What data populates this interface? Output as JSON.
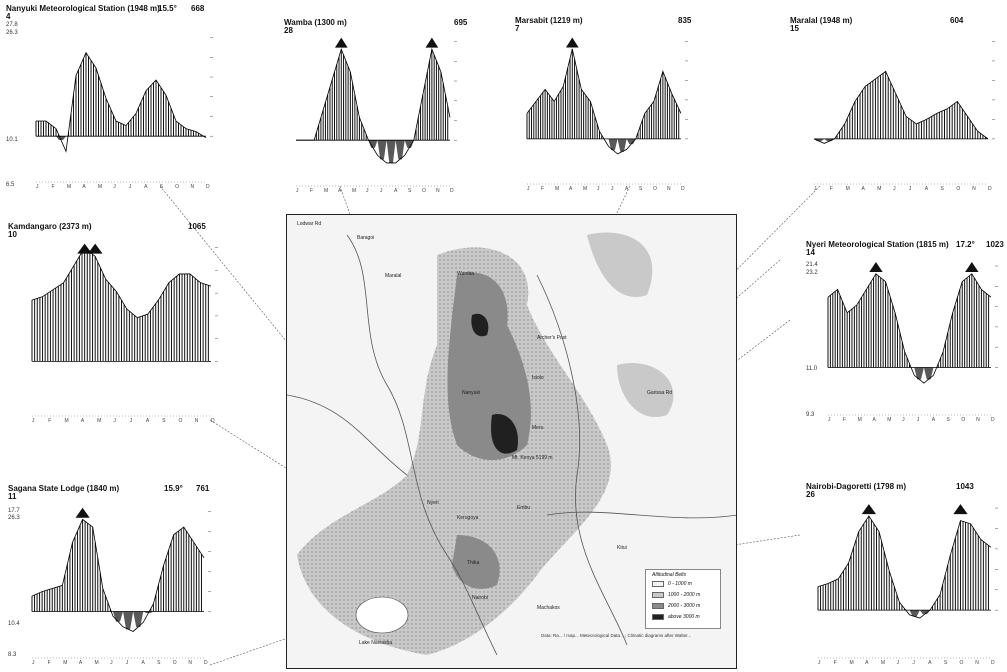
{
  "panels": [
    {
      "id": "nanyuki",
      "title": "Nanyuki Meteorological Station (1948 m)",
      "temp": "15.5°",
      "rain": "668",
      "years": "4",
      "ytop1": "27.8",
      "ytop2": "26.3",
      "ybot1": "6.5",
      "ymid": "10.1",
      "climate": [
        0.45,
        0.45,
        0.44,
        0.5,
        0.76,
        0.92,
        0.84,
        0.68,
        0.58,
        0.56,
        0.62,
        0.8,
        0.84,
        0.74,
        0.56,
        0.48,
        0.45,
        0.42
      ],
      "rain_curve": [
        0.47,
        0.44,
        0.32,
        0.55,
        0.95,
        0.88,
        0.72,
        0.62,
        0.58,
        0.62,
        0.82,
        0.85,
        0.72,
        0.6,
        0.52,
        0.47,
        0.42,
        0.44
      ]
    },
    {
      "id": "wamba",
      "title": "Wamba (1300 m)",
      "temp": "",
      "rain": "695",
      "years": "28",
      "ytop1": "",
      "ytop2": "",
      "ybot1": "",
      "ymid": "",
      "climate": [],
      "rain_curve": []
    },
    {
      "id": "marsabit",
      "title": "Marsabit (1219 m)",
      "temp": "",
      "rain": "835",
      "years": "7",
      "ytop1": "",
      "ytop2": "",
      "ybot1": "",
      "ymid": "",
      "climate": [],
      "rain_curve": []
    },
    {
      "id": "maralal",
      "title": "Maralal (1948 m)",
      "temp": "",
      "rain": "604",
      "years": "15",
      "ytop1": "",
      "ytop2": "",
      "ybot1": "",
      "ymid": "",
      "climate": [],
      "rain_curve": []
    },
    {
      "id": "kamdangaro",
      "title": "Kamdangaro (2373 m)",
      "temp": "",
      "rain": "1065",
      "years": "10",
      "ytop1": "",
      "ytop2": "",
      "ybot1": "",
      "ymid": "",
      "climate": [],
      "rain_curve": []
    },
    {
      "id": "nyeri",
      "title": "Nyeri Meteorological Station (1815 m)",
      "temp": "17.2°",
      "rain": "1023",
      "years": "14",
      "ytop1": "21.4",
      "ytop2": "23.2",
      "ybot1": "9.3",
      "ymid": "11.0",
      "climate": [],
      "rain_curve": []
    },
    {
      "id": "sagana",
      "title": "Sagana State Lodge (1840 m)",
      "temp": "15.9°",
      "rain": "761",
      "years": "11",
      "ytop1": "17.7",
      "ytop2": "26.3",
      "ybot1": "8.3",
      "ymid": "10.4",
      "climate": [],
      "rain_curve": []
    },
    {
      "id": "nairobi",
      "title": "Nairobi-Dagoretti (1798 m)",
      "temp": "",
      "rain": "1043",
      "years": "26",
      "ytop1": "",
      "ytop2": "",
      "ybot1": "",
      "ymid": "",
      "climate": [],
      "rain_curve": []
    }
  ],
  "month_letters": [
    "J",
    "F",
    "M",
    "A",
    "M",
    "J",
    "J",
    "A",
    "S",
    "O",
    "N",
    "D"
  ],
  "map": {
    "places": [
      "Maralal",
      "Baragoi",
      "Wamba",
      "Archer's Post",
      "Isiolo",
      "Meru",
      "Nyeri",
      "Nanyuki",
      "Kerugoya",
      "Embu",
      "Thika",
      "Nairobi",
      "Mt. Kenya 5199 m",
      "Lake Naivasha",
      "Garissa Rd",
      "Kitui",
      "Machakos",
      "Lodwar Rd"
    ],
    "legend_title": "Altitudinal Belts",
    "legend": [
      {
        "label": "0 - 1000 m",
        "color": "#f4f4f4"
      },
      {
        "label": "1000 - 2000 m",
        "color": "#c9c9c9"
      },
      {
        "label": "2000 - 3000 m",
        "color": "#8a8a8a"
      },
      {
        "label": "above 3000 m",
        "color": "#202020"
      }
    ],
    "source": "Data: Ra... / map... Meteorological Data ...; Climatic diagrams after Walter..."
  }
}
